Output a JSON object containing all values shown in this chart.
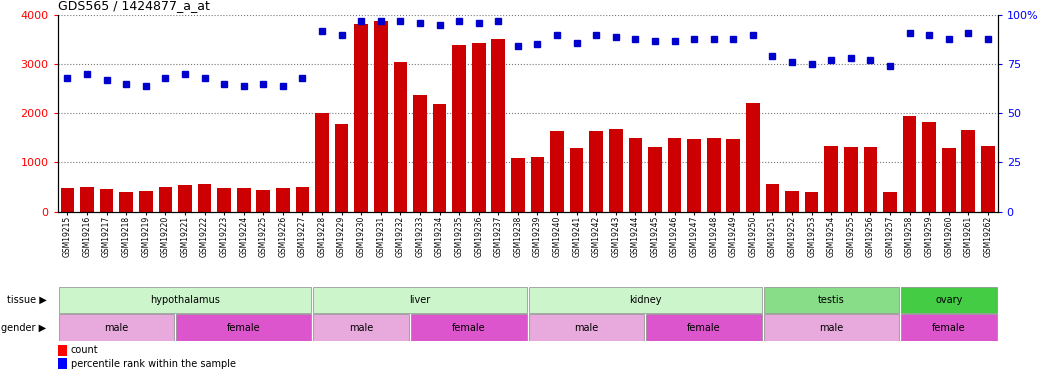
{
  "title": "GDS565 / 1424877_a_at",
  "samples": [
    "GSM19215",
    "GSM19216",
    "GSM19217",
    "GSM19218",
    "GSM19219",
    "GSM19220",
    "GSM19221",
    "GSM19222",
    "GSM19223",
    "GSM19224",
    "GSM19225",
    "GSM19226",
    "GSM19227",
    "GSM19228",
    "GSM19229",
    "GSM19230",
    "GSM19231",
    "GSM19232",
    "GSM19233",
    "GSM19234",
    "GSM19235",
    "GSM19236",
    "GSM19237",
    "GSM19238",
    "GSM19239",
    "GSM19240",
    "GSM19241",
    "GSM19242",
    "GSM19243",
    "GSM19244",
    "GSM19245",
    "GSM19246",
    "GSM19247",
    "GSM19248",
    "GSM19249",
    "GSM19250",
    "GSM19251",
    "GSM19252",
    "GSM19253",
    "GSM19254",
    "GSM19255",
    "GSM19256",
    "GSM19257",
    "GSM19258",
    "GSM19259",
    "GSM19260",
    "GSM19261",
    "GSM19262"
  ],
  "counts": [
    470,
    490,
    460,
    390,
    420,
    490,
    540,
    560,
    480,
    470,
    440,
    470,
    490,
    2000,
    1780,
    3820,
    3870,
    3050,
    2370,
    2180,
    3380,
    3430,
    3520,
    1080,
    1100,
    1640,
    1300,
    1640,
    1670,
    1490,
    1310,
    1500,
    1480,
    1490,
    1470,
    2200,
    560,
    420,
    390,
    1340,
    1310,
    1310,
    390,
    1950,
    1820,
    1300,
    1660,
    1340
  ],
  "percentiles": [
    68,
    70,
    67,
    65,
    64,
    68,
    70,
    68,
    65,
    64,
    65,
    64,
    68,
    92,
    90,
    97,
    97,
    97,
    96,
    95,
    97,
    96,
    97,
    84,
    85,
    90,
    86,
    90,
    89,
    88,
    87,
    87,
    88,
    88,
    88,
    90,
    79,
    76,
    75,
    77,
    78,
    77,
    74,
    91,
    90,
    88,
    91,
    88
  ],
  "tissue_groups": [
    {
      "label": "hypothalamus",
      "start": 0,
      "end": 13
    },
    {
      "label": "liver",
      "start": 13,
      "end": 24
    },
    {
      "label": "kidney",
      "start": 24,
      "end": 36
    },
    {
      "label": "testis",
      "start": 36,
      "end": 43
    },
    {
      "label": "ovary",
      "start": 43,
      "end": 48
    }
  ],
  "tissue_colors": {
    "hypothalamus": "#ccf5cc",
    "liver": "#ccf5cc",
    "kidney": "#ccf5cc",
    "testis": "#88dd88",
    "ovary": "#44cc44"
  },
  "gender_groups": [
    {
      "label": "male",
      "start": 0,
      "end": 6
    },
    {
      "label": "female",
      "start": 6,
      "end": 13
    },
    {
      "label": "male",
      "start": 13,
      "end": 18
    },
    {
      "label": "female",
      "start": 18,
      "end": 24
    },
    {
      "label": "male",
      "start": 24,
      "end": 30
    },
    {
      "label": "female",
      "start": 30,
      "end": 36
    },
    {
      "label": "male",
      "start": 36,
      "end": 43
    },
    {
      "label": "female",
      "start": 43,
      "end": 48
    }
  ],
  "gender_colors": {
    "male": "#e8aadd",
    "female": "#dd55cc"
  },
  "bar_color": "#cc0000",
  "dot_color": "#0000cc",
  "ylim_left": [
    0,
    4000
  ],
  "ylim_right": [
    0,
    100
  ],
  "yticks_left": [
    0,
    1000,
    2000,
    3000,
    4000
  ],
  "yticks_right": [
    0,
    25,
    50,
    75,
    100
  ],
  "background_color": "#ffffff",
  "grid_color": "#777777"
}
